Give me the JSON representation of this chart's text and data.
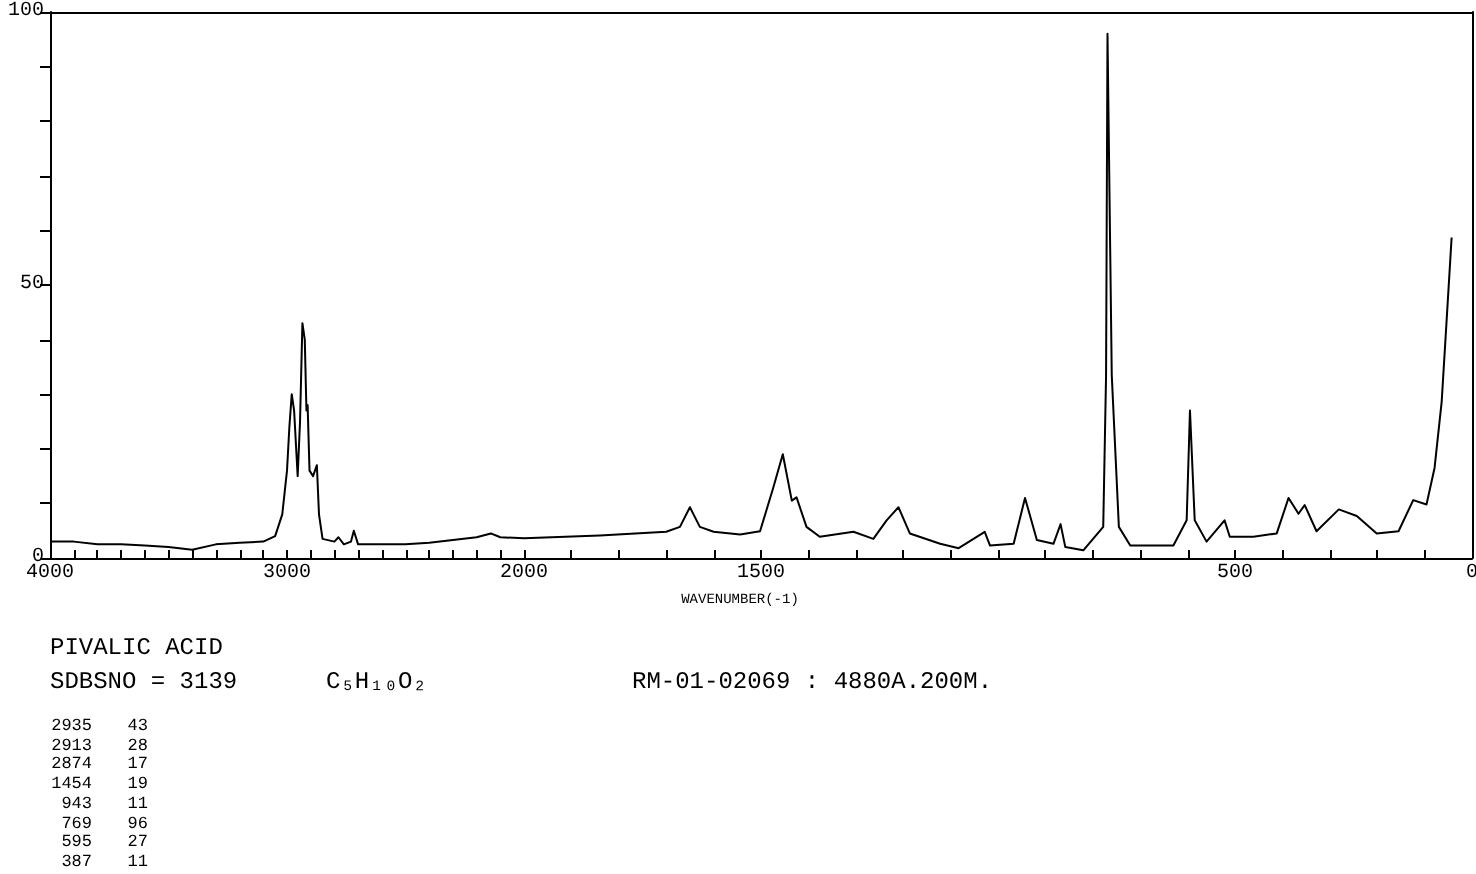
{
  "chart_data": [
    {
      "type": "line",
      "title": "PIVALIC ACID",
      "subtitle": "SDBSNO = 3139",
      "annotations": [
        "C₅H₁₀O₂",
        "RM-01-02069 : 4880A.200M.",
        "2935 43",
        "2913 28",
        "2874 17",
        "1454 19",
        "943 11",
        "769 96",
        "595 27",
        "387 11"
      ],
      "x": [
        4000,
        3900,
        3800,
        3700,
        3600,
        3500,
        3400,
        3300,
        3200,
        3100,
        3050,
        3020,
        3000,
        2990,
        2980,
        2970,
        2960,
        2955,
        2945,
        2935,
        2925,
        2918,
        2913,
        2905,
        2890,
        2874,
        2865,
        2850,
        2800,
        2783,
        2760,
        2730,
        2718,
        2700,
        2600,
        2500,
        2400,
        2300,
        2200,
        2140,
        2100,
        2000
      ],
      "series": [
        {
          "color": "#000000",
          "values": [
            3,
            3,
            2.5,
            2.5,
            2.3,
            2,
            1.5,
            2.5,
            2.8,
            3,
            4,
            8,
            16,
            24,
            30,
            27,
            19,
            15,
            25,
            43,
            40,
            27,
            28,
            16,
            15,
            17,
            8,
            3.5,
            3,
            3.8,
            2.5,
            3,
            5,
            2.5,
            2.5,
            2.5,
            2.8,
            3.3,
            3.8,
            4.5,
            3.8,
            3.6
          ]
        }
      ],
      "xlim": [
        4000,
        2000
      ],
      "ylim": [
        0,
        100
      ],
      "xticks": [
        4000,
        {
          "value": 3900,
          "label": null
        },
        {
          "value": 3800,
          "label": null
        },
        {
          "value": 3700,
          "label": null
        },
        {
          "value": 3600,
          "label": null
        },
        {
          "value": 3500,
          "label": null
        },
        {
          "value": 3400,
          "label": null
        },
        {
          "value": 3300,
          "label": null
        },
        {
          "value": 3200,
          "label": null
        },
        {
          "value": 3100,
          "label": null
        },
        3000,
        {
          "value": 2900,
          "label": null
        },
        {
          "value": 2800,
          "label": null
        },
        {
          "value": 2700,
          "label": null
        },
        {
          "value": 2600,
          "label": null
        },
        {
          "value": 2500,
          "label": null
        },
        {
          "value": 2400,
          "label": null
        },
        {
          "value": 2300,
          "label": null
        },
        {
          "value": 2200,
          "label": null
        },
        {
          "value": 2100,
          "label": null
        },
        2000
      ],
      "yticks": [
        0,
        {
          "value": 10,
          "label": null
        },
        {
          "value": 20,
          "label": null
        },
        {
          "value": 30,
          "label": null
        },
        {
          "value": 40,
          "label": null
        },
        50,
        {
          "value": 60,
          "label": null
        },
        {
          "value": 70,
          "label": null
        },
        {
          "value": 80,
          "label": null
        },
        {
          "value": 90,
          "label": null
        },
        100
      ]
    },
    {
      "type": "line",
      "xlabel": "WAVENUMBER(-1)",
      "x": [
        2000,
        1840,
        1700,
        1671,
        1650,
        1629,
        1600,
        1544,
        1502,
        1474,
        1454,
        1435,
        1425,
        1404,
        1376,
        1305,
        1263,
        1235,
        1210,
        1186,
        1122,
        1083,
        1028,
        1017,
        967,
        943,
        918,
        883,
        868,
        858,
        820,
        778,
        772,
        769,
        760,
        745,
        721,
        630,
        602,
        595,
        585,
        560,
        522,
        511,
        461,
        412,
        387,
        366,
        353,
        328,
        281,
        243,
        201,
        155,
        124,
        96,
        79,
        64,
        53,
        43
      ],
      "series": [
        {
          "color": "#000000",
          "values": [
            3.6,
            4.1,
            4.8,
            5.7,
            9.3,
            5.7,
            4.8,
            4.3,
            4.9,
            12.9,
            19,
            10.5,
            11.1,
            5.7,
            3.9,
            4.8,
            3.5,
            6.9,
            9.3,
            4.5,
            2.6,
            1.8,
            4.8,
            2.3,
            2.6,
            11,
            3.3,
            2.6,
            6.2,
            2,
            1.4,
            5.7,
            33.5,
            96,
            33.5,
            5.7,
            2.3,
            2.3,
            6.9,
            27,
            6.9,
            3,
            6.9,
            3.9,
            3.9,
            4.5,
            11,
            8.1,
            9.7,
            4.9,
            8.9,
            7.7,
            4.5,
            4.9,
            10.6,
            9.8,
            16.5,
            28.6,
            44.3,
            58.7
          ]
        }
      ],
      "xlim": [
        2000,
        0
      ],
      "ylim": [
        0,
        100
      ],
      "tick_labels": "x",
      "xticks": [
        {
          "value": 2000,
          "label": null
        },
        {
          "value": 1900,
          "label": null
        },
        {
          "value": 1800,
          "label": null
        },
        {
          "value": 1700,
          "label": null
        },
        {
          "value": 1600,
          "label": null
        },
        1500,
        {
          "value": 1400,
          "label": null
        },
        {
          "value": 1300,
          "label": null
        },
        {
          "value": 1200,
          "label": null
        },
        {
          "value": 1100,
          "label": null
        },
        {
          "value": 1000,
          "label": null
        },
        {
          "value": 900,
          "label": null
        },
        {
          "value": 800,
          "label": null
        },
        {
          "value": 700,
          "label": null
        },
        {
          "value": 600,
          "label": null
        },
        500,
        {
          "value": 400,
          "label": null
        },
        {
          "value": 300,
          "label": null
        },
        {
          "value": 200,
          "label": null
        },
        {
          "value": 100,
          "label": null
        },
        0
      ]
    }
  ]
}
